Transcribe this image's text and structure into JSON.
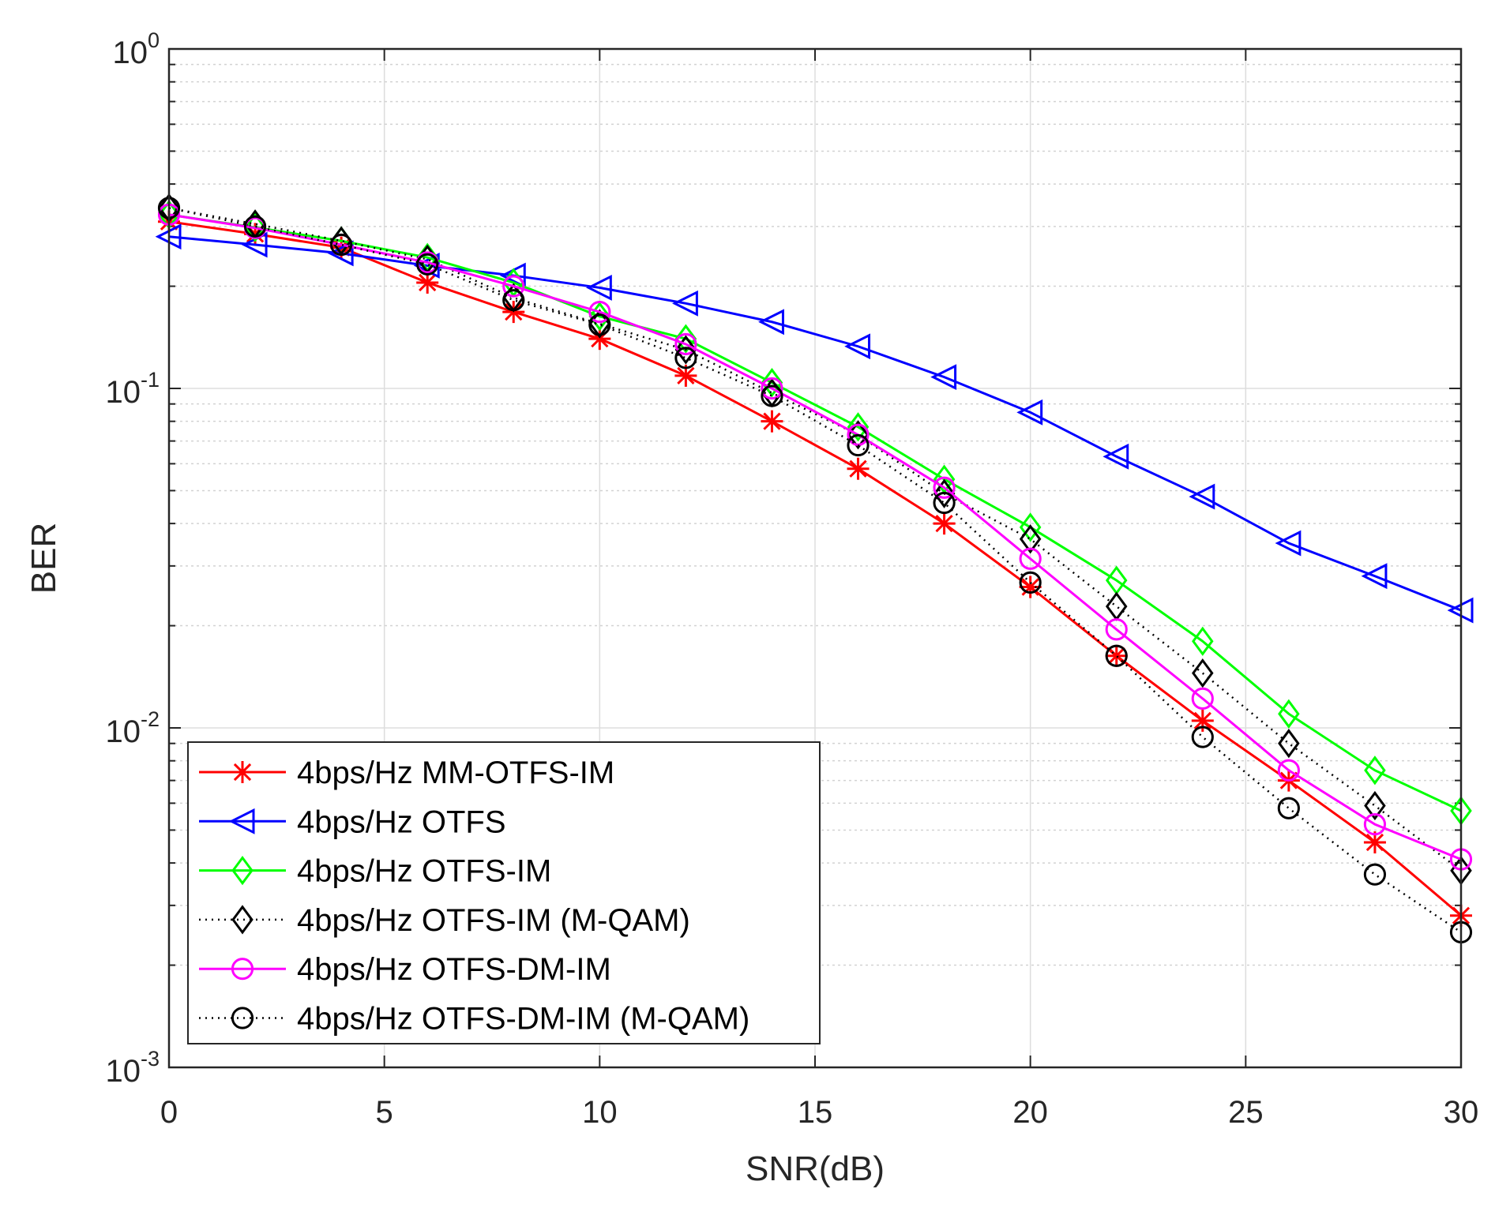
{
  "chart_data": {
    "type": "line",
    "title": "",
    "xlabel": "SNR(dB)",
    "ylabel": "BER",
    "xlim": [
      0,
      30
    ],
    "ylim": [
      0.001,
      1
    ],
    "yscale": "log",
    "grid": true,
    "x_ticks": [
      0,
      5,
      10,
      15,
      20,
      25,
      30
    ],
    "x_tick_labels": [
      "0",
      "5",
      "10",
      "15",
      "20",
      "25",
      "30"
    ],
    "y_ticks": [
      {
        "value": 1,
        "base": "10",
        "exp": "0"
      },
      {
        "value": 0.1,
        "base": "10",
        "exp": "-1"
      },
      {
        "value": 0.01,
        "base": "10",
        "exp": "-2"
      },
      {
        "value": 0.001,
        "base": "10",
        "exp": "-3"
      }
    ],
    "legend_position": "bottom-left",
    "x": [
      0,
      2,
      4,
      6,
      8,
      10,
      12,
      14,
      16,
      18,
      20,
      22,
      24,
      26,
      28,
      30
    ],
    "series": [
      {
        "name": "4bps/Hz MM-OTFS-IM",
        "color": "#ff0000",
        "marker": "star",
        "dash": "solid",
        "values": [
          0.31,
          0.285,
          0.26,
          0.205,
          0.168,
          0.14,
          0.109,
          0.08,
          0.058,
          0.04,
          0.026,
          0.0163,
          0.0105,
          0.007,
          0.0046,
          0.0028
        ]
      },
      {
        "name": "4bps/Hz OTFS",
        "color": "#0000ff",
        "marker": "triangle-left",
        "dash": "solid",
        "values": [
          0.28,
          0.265,
          0.25,
          0.23,
          0.215,
          0.198,
          0.178,
          0.157,
          0.133,
          0.108,
          0.085,
          0.063,
          0.048,
          0.035,
          0.028,
          0.0222
        ]
      },
      {
        "name": "4bps/Hz OTFS-IM",
        "color": "#00ff00",
        "marker": "diamond",
        "dash": "solid",
        "values": [
          0.325,
          0.298,
          0.272,
          0.243,
          0.205,
          0.163,
          0.14,
          0.104,
          0.077,
          0.054,
          0.039,
          0.0272,
          0.018,
          0.011,
          0.0075,
          0.0057
        ]
      },
      {
        "name": "4bps/Hz OTFS-IM (M-QAM)",
        "color": "#000000",
        "marker": "diamond",
        "dash": "dotted",
        "values": [
          0.34,
          0.305,
          0.272,
          0.24,
          0.185,
          0.155,
          0.13,
          0.097,
          0.073,
          0.049,
          0.036,
          0.0228,
          0.0145,
          0.009,
          0.0059,
          0.0038
        ]
      },
      {
        "name": "4bps/Hz OTFS-DM-IM",
        "color": "#ff00ff",
        "marker": "circle",
        "dash": "solid",
        "values": [
          0.325,
          0.297,
          0.265,
          0.235,
          0.2,
          0.168,
          0.135,
          0.1,
          0.073,
          0.051,
          0.0315,
          0.0195,
          0.0122,
          0.0075,
          0.0052,
          0.0041
        ]
      },
      {
        "name": "4bps/Hz OTFS-DM-IM (M-QAM)",
        "color": "#000000",
        "marker": "circle",
        "dash": "dotted",
        "values": [
          0.34,
          0.3,
          0.265,
          0.232,
          0.182,
          0.154,
          0.123,
          0.095,
          0.068,
          0.046,
          0.0268,
          0.0163,
          0.0094,
          0.0058,
          0.0037,
          0.0025
        ]
      }
    ]
  }
}
